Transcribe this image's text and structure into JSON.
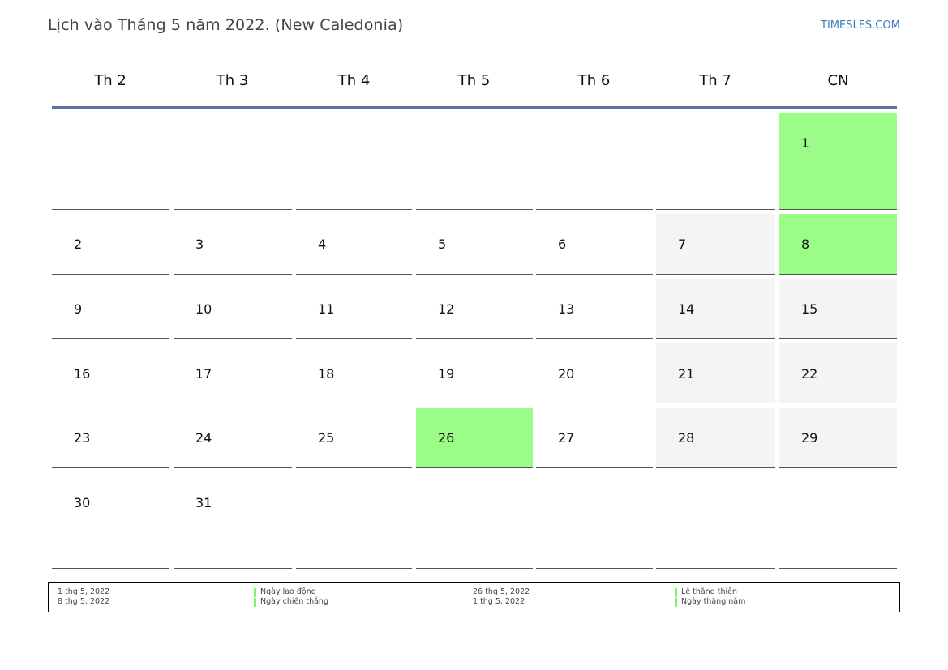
{
  "header": {
    "title": "Lịch vào Tháng 5 năm 2022. (New Caledonia)",
    "site": "TIMESLES.COM"
  },
  "weekdays": [
    "Th 2",
    "Th 3",
    "Th 4",
    "Th 5",
    "Th 6",
    "Th 7",
    "CN"
  ],
  "colors": {
    "holiday": "#9bfd88",
    "weekend": "#f4f4f4",
    "accent_rule": "#5b73a0",
    "link": "#3a7bbf"
  },
  "weeks": [
    [
      {
        "day": "",
        "type": "empty"
      },
      {
        "day": "",
        "type": "empty"
      },
      {
        "day": "",
        "type": "empty"
      },
      {
        "day": "",
        "type": "empty"
      },
      {
        "day": "",
        "type": "empty"
      },
      {
        "day": "",
        "type": "empty"
      },
      {
        "day": "1",
        "type": "holiday"
      }
    ],
    [
      {
        "day": "2",
        "type": "normal"
      },
      {
        "day": "3",
        "type": "normal"
      },
      {
        "day": "4",
        "type": "normal"
      },
      {
        "day": "5",
        "type": "normal"
      },
      {
        "day": "6",
        "type": "normal"
      },
      {
        "day": "7",
        "type": "weekend"
      },
      {
        "day": "8",
        "type": "holiday"
      }
    ],
    [
      {
        "day": "9",
        "type": "normal"
      },
      {
        "day": "10",
        "type": "normal"
      },
      {
        "day": "11",
        "type": "normal"
      },
      {
        "day": "12",
        "type": "normal"
      },
      {
        "day": "13",
        "type": "normal"
      },
      {
        "day": "14",
        "type": "weekend"
      },
      {
        "day": "15",
        "type": "weekend"
      }
    ],
    [
      {
        "day": "16",
        "type": "normal"
      },
      {
        "day": "17",
        "type": "normal"
      },
      {
        "day": "18",
        "type": "normal"
      },
      {
        "day": "19",
        "type": "normal"
      },
      {
        "day": "20",
        "type": "normal"
      },
      {
        "day": "21",
        "type": "weekend"
      },
      {
        "day": "22",
        "type": "weekend"
      }
    ],
    [
      {
        "day": "23",
        "type": "normal"
      },
      {
        "day": "24",
        "type": "normal"
      },
      {
        "day": "25",
        "type": "normal"
      },
      {
        "day": "26",
        "type": "holiday"
      },
      {
        "day": "27",
        "type": "normal"
      },
      {
        "day": "28",
        "type": "weekend"
      },
      {
        "day": "29",
        "type": "weekend"
      }
    ],
    [
      {
        "day": "30",
        "type": "normal"
      },
      {
        "day": "31",
        "type": "normal"
      },
      {
        "day": "",
        "type": "empty"
      },
      {
        "day": "",
        "type": "empty"
      },
      {
        "day": "",
        "type": "empty"
      },
      {
        "day": "",
        "type": "empty"
      },
      {
        "day": "",
        "type": "empty"
      }
    ]
  ],
  "legend": {
    "groups": [
      {
        "dates": [
          "1 thg 5, 2022",
          "8 thg 5, 2022"
        ],
        "names": [
          "Ngày lao động",
          "Ngày chiến thắng"
        ]
      },
      {
        "dates": [
          "26 thg 5, 2022",
          "1 thg 5, 2022"
        ],
        "names": [
          "Lễ thăng thiên",
          "Ngày thắng năm"
        ]
      }
    ]
  }
}
